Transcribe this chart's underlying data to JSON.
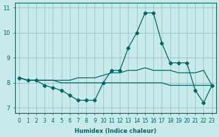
{
  "xlabel": "Humidex (Indice chaleur)",
  "ylabel": "",
  "bg_color": "#c8eaea",
  "grid_color": "#a0c8c8",
  "line_color": "#006666",
  "xlim": [
    -0.5,
    23.5
  ],
  "ylim": [
    6.8,
    11.2
  ],
  "yticks": [
    7,
    8,
    9,
    10,
    11
  ],
  "xticks": [
    0,
    1,
    2,
    3,
    4,
    5,
    6,
    7,
    8,
    9,
    10,
    11,
    12,
    13,
    14,
    15,
    16,
    17,
    18,
    19,
    20,
    21,
    22,
    23
  ],
  "series": [
    {
      "x": [
        0,
        1,
        2,
        3,
        4,
        5,
        6,
        7,
        8,
        9,
        10,
        11,
        12,
        13,
        14,
        15,
        16,
        17,
        18,
        19,
        20,
        21,
        22,
        23
      ],
      "y": [
        8.2,
        8.1,
        8.1,
        7.9,
        7.8,
        7.7,
        7.5,
        7.3,
        7.3,
        7.3,
        8.0,
        8.5,
        8.5,
        9.4,
        10.0,
        10.8,
        10.8,
        9.6,
        8.8,
        8.8,
        8.8,
        7.7,
        7.2,
        7.9
      ],
      "marker": "D",
      "markersize": 2.5
    },
    {
      "x": [
        0,
        1,
        2,
        3,
        4,
        5,
        6,
        7,
        8,
        9,
        10,
        11,
        12,
        13,
        14,
        15,
        16,
        17,
        18,
        19,
        20,
        21,
        22,
        23
      ],
      "y": [
        8.2,
        8.1,
        8.1,
        8.1,
        8.1,
        8.0,
        8.0,
        8.0,
        8.0,
        8.0,
        8.0,
        8.0,
        8.0,
        8.0,
        8.0,
        8.0,
        8.0,
        8.0,
        7.9,
        7.9,
        7.9,
        7.9,
        7.9,
        7.9
      ],
      "marker": null,
      "markersize": 0
    },
    {
      "x": [
        0,
        1,
        2,
        3,
        4,
        5,
        6,
        7,
        8,
        9,
        10,
        11,
        12,
        13,
        14,
        15,
        16,
        17,
        18,
        19,
        20,
        21,
        22,
        23
      ],
      "y": [
        8.2,
        8.1,
        8.1,
        8.1,
        8.1,
        8.1,
        8.1,
        8.2,
        8.2,
        8.2,
        8.3,
        8.4,
        8.4,
        8.5,
        8.5,
        8.6,
        8.5,
        8.5,
        8.5,
        8.4,
        8.4,
        8.4,
        8.5,
        7.9
      ],
      "marker": null,
      "markersize": 0
    }
  ]
}
